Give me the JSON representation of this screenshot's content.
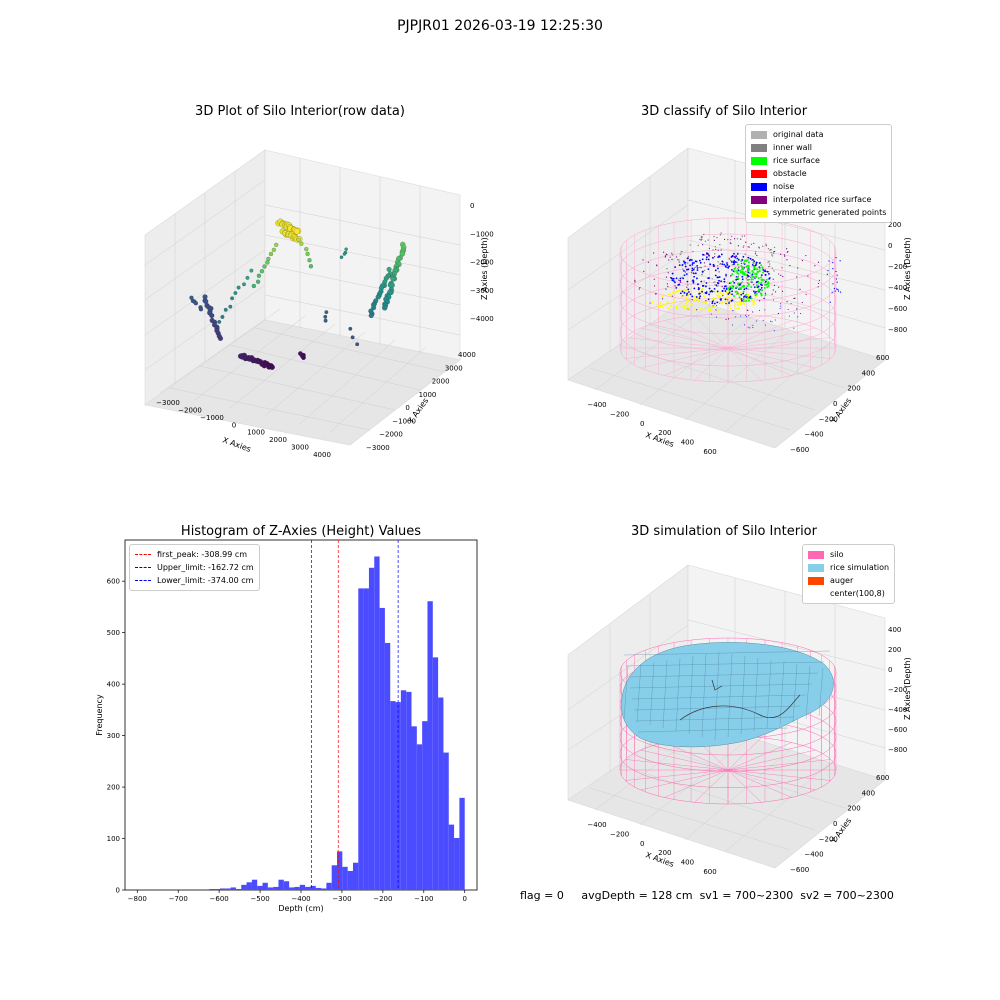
{
  "suptitle": "PJPJR01 2026-03-19 12:25:30",
  "status": {
    "flag": "flag = 0",
    "avgDepth": "avgDepth = 128 cm",
    "sv1": "sv1 = 700~2300",
    "sv2": "sv2 = 700~2300"
  },
  "chart_data": [
    {
      "type": "scatter",
      "title": "3D Plot of Silo Interior(row data)",
      "xlabel": "X Axies",
      "ylabel": "Y Axies",
      "zlabel": "Z Axies (Depth)",
      "xticks": [
        "−3000",
        "−2000",
        "−1000",
        "0",
        "1000",
        "2000",
        "3000",
        "4000"
      ],
      "yticks": [
        "−3000",
        "−2000",
        "−1000",
        "0",
        "1000",
        "2000",
        "3000",
        "4000"
      ],
      "zticks": [
        "0",
        "−1000",
        "−2000",
        "−3000",
        "−4000"
      ],
      "colormap": "viridis"
    },
    {
      "type": "scatter",
      "title": "3D classify of Silo Interior",
      "xlabel": "X Axies",
      "ylabel": "Y Axies",
      "zlabel": "Z Axies (Depth)",
      "xticks": [
        "−400",
        "−200",
        "0",
        "200",
        "400",
        "600"
      ],
      "yticks": [
        "−600",
        "−400",
        "−200",
        "0",
        "200",
        "400",
        "600"
      ],
      "zticks": [
        "200",
        "0",
        "−200",
        "−400",
        "−600",
        "−800"
      ],
      "legend": [
        {
          "label": "original data",
          "color": "#b0b0b0"
        },
        {
          "label": "inner wall",
          "color": "#808080"
        },
        {
          "label": "rice surface",
          "color": "#00ff00"
        },
        {
          "label": "obstacle",
          "color": "#ff0000"
        },
        {
          "label": "noise",
          "color": "#0000ff"
        },
        {
          "label": "interpolated rice surface",
          "color": "#800080"
        },
        {
          "label": "symmetric generated points",
          "color": "#ffff00"
        }
      ],
      "legend_position": "top-right"
    },
    {
      "type": "bar",
      "title": "Histogram of Z-Axies (Height) Values",
      "xlabel": "Depth (cm)",
      "ylabel": "Frequency",
      "xlim": [
        -830,
        30
      ],
      "ylim": [
        0,
        680
      ],
      "xticks": [
        "−800",
        "−700",
        "−600",
        "−500",
        "−400",
        "−300",
        "−200",
        "−100",
        "0"
      ],
      "yticks": [
        "0",
        "100",
        "200",
        "300",
        "400",
        "500",
        "600"
      ],
      "bar_color": "#4b4bff",
      "bins": [
        {
          "x0": -812,
          "x1": -799,
          "v": 2
        },
        {
          "x0": -799,
          "x1": -786,
          "v": 2
        },
        {
          "x0": -786,
          "x1": -773,
          "v": 3
        },
        {
          "x0": -773,
          "x1": -760,
          "v": 3
        },
        {
          "x0": -760,
          "x1": -747,
          "v": 5
        },
        {
          "x0": -747,
          "x1": -734,
          "v": 2
        },
        {
          "x0": -734,
          "x1": -721,
          "v": 10
        },
        {
          "x0": -721,
          "x1": -708,
          "v": 15
        },
        {
          "x0": -708,
          "x1": -695,
          "v": 20
        },
        {
          "x0": -695,
          "x1": -682,
          "v": 8
        },
        {
          "x0": -682,
          "x1": -669,
          "v": 14
        },
        {
          "x0": -669,
          "x1": -656,
          "v": 5
        },
        {
          "x0": -656,
          "x1": -643,
          "v": 6
        },
        {
          "x0": -643,
          "x1": -630,
          "v": 20
        },
        {
          "x0": -630,
          "x1": -617,
          "v": 17
        },
        {
          "x0": -617,
          "x1": -604,
          "v": 5
        },
        {
          "x0": -604,
          "x1": -591,
          "v": 6
        },
        {
          "x0": -591,
          "x1": -578,
          "v": 10
        },
        {
          "x0": -578,
          "x1": -565,
          "v": 6
        },
        {
          "x0": -565,
          "x1": -552,
          "v": 8
        },
        {
          "x0": -552,
          "x1": -539,
          "v": 4
        },
        {
          "x0": -539,
          "x1": -526,
          "v": 3
        },
        {
          "x0": -526,
          "x1": -513,
          "v": 14
        },
        {
          "x0": -513,
          "x1": -500,
          "v": 48
        },
        {
          "x0": -500,
          "x1": -487,
          "v": 75
        },
        {
          "x0": -487,
          "x1": -474,
          "v": 45
        },
        {
          "x0": -474,
          "x1": -461,
          "v": 37
        },
        {
          "x0": -461,
          "x1": -448,
          "v": 53
        },
        {
          "x0": -448,
          "x1": -435,
          "v": 586
        },
        {
          "x0": -435,
          "x1": -422,
          "v": 586
        },
        {
          "x0": -422,
          "x1": -409,
          "v": 626
        },
        {
          "x0": -409,
          "x1": -396,
          "v": 648
        },
        {
          "x0": -396,
          "x1": -383,
          "v": 548
        },
        {
          "x0": -383,
          "x1": -370,
          "v": 480
        },
        {
          "x0": -370,
          "x1": -357,
          "v": 367
        },
        {
          "x0": -357,
          "x1": -344,
          "v": 365
        },
        {
          "x0": -344,
          "x1": -331,
          "v": 388
        },
        {
          "x0": -331,
          "x1": -318,
          "v": 385
        },
        {
          "x0": -318,
          "x1": -305,
          "v": 318
        },
        {
          "x0": -305,
          "x1": -292,
          "v": 283
        },
        {
          "x0": -292,
          "x1": -279,
          "v": 328
        },
        {
          "x0": -279,
          "x1": -266,
          "v": 561
        },
        {
          "x0": -266,
          "x1": -253,
          "v": 452
        },
        {
          "x0": -253,
          "x1": -240,
          "v": 374
        },
        {
          "x0": -240,
          "x1": -227,
          "v": 267
        },
        {
          "x0": -227,
          "x1": -214,
          "v": 127
        },
        {
          "x0": -214,
          "x1": -201,
          "v": 101
        },
        {
          "x0": -201,
          "x1": -188,
          "v": 179
        }
      ],
      "vlines": [
        {
          "label": "first_peak: -308.99 cm",
          "x": -308.99,
          "color": "#ff0000"
        },
        {
          "label": "Upper_limit: -162.72 cm",
          "x": -162.72,
          "color": "#0000ff"
        },
        {
          "label": "Lower_limit: -374.00 cm",
          "x": -374.0,
          "color": "#0000ff"
        }
      ],
      "legend_position": "top-left"
    },
    {
      "type": "other",
      "title": "3D simulation of Silo Interior",
      "xlabel": "X Axies",
      "ylabel": "Y Axies",
      "zlabel": "Z Axies (Depth)",
      "xticks": [
        "−400",
        "−200",
        "0",
        "200",
        "400",
        "600"
      ],
      "yticks": [
        "−600",
        "−400",
        "−200",
        "0",
        "200",
        "400",
        "600"
      ],
      "zticks": [
        "400",
        "200",
        "0",
        "−200",
        "−400",
        "−600",
        "−800"
      ],
      "legend": [
        {
          "label": "silo",
          "color": "#ff69b4"
        },
        {
          "label": "rice simulation",
          "color": "#87ceeb"
        },
        {
          "label": "auger",
          "color": "#ff4500"
        },
        {
          "label": "center(100,8)",
          "color": "#ffffff"
        }
      ],
      "legend_position": "top-right"
    }
  ]
}
